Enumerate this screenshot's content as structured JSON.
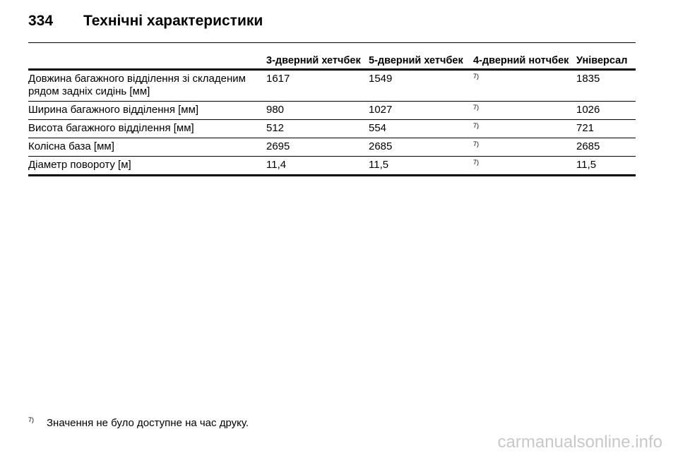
{
  "header": {
    "page_number": "334",
    "title": "Технічні характеристики"
  },
  "table": {
    "columns": [
      "3-дверний хетчбек",
      "5-дверний хетчбек",
      "4-дверний нотчбек",
      "Універсал"
    ],
    "rows": [
      {
        "label": "Довжина багажного відділення зі складеним рядом задніх сидінь [мм]",
        "values": [
          "1617",
          "1549",
          "7)",
          "1835"
        ]
      },
      {
        "label": "Ширина багажного відділення [мм]",
        "values": [
          "980",
          "1027",
          "7)",
          "1026"
        ]
      },
      {
        "label": "Висота багажного відділення [мм]",
        "values": [
          "512",
          "554",
          "7)",
          "721"
        ]
      },
      {
        "label": "Колісна база [мм]",
        "values": [
          "2695",
          "2685",
          "7)",
          "2685"
        ]
      },
      {
        "label": "Діаметр повороту [м]",
        "values": [
          "11,4",
          "11,5",
          "7)",
          "11,5"
        ]
      }
    ]
  },
  "footnote": {
    "marker": "7)",
    "text": "Значення не було доступне на час друку."
  },
  "watermark": "carmanualsonline.info"
}
